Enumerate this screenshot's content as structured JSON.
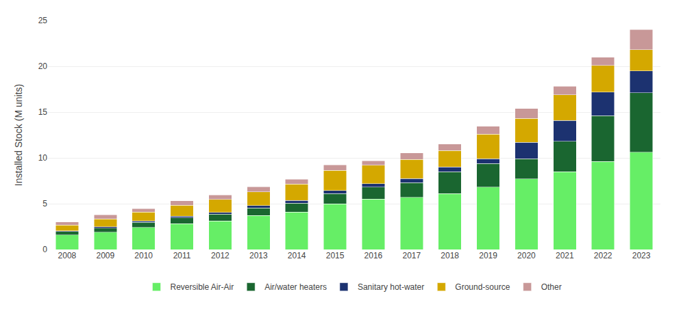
{
  "chart_data": {
    "type": "bar",
    "stacked": true,
    "categories": [
      "2008",
      "2009",
      "2010",
      "2011",
      "2012",
      "2013",
      "2014",
      "2015",
      "2016",
      "2017",
      "2018",
      "2019",
      "2020",
      "2021",
      "2022",
      "2023"
    ],
    "series": [
      {
        "name": "Reversible Air-Air",
        "color": "#66EE66",
        "values": [
          1.6,
          1.9,
          2.4,
          2.8,
          3.1,
          3.7,
          4.1,
          5.0,
          5.5,
          5.7,
          6.1,
          6.8,
          7.7,
          8.5,
          9.6,
          10.6
        ]
      },
      {
        "name": "Air/water heaters",
        "color": "#1A6630",
        "values": [
          0.35,
          0.45,
          0.55,
          0.65,
          0.75,
          0.85,
          0.95,
          1.1,
          1.3,
          1.6,
          2.4,
          2.6,
          2.2,
          3.3,
          5.0,
          6.5
        ]
      },
      {
        "name": "Sanitary hot-water",
        "color": "#1C3270",
        "values": [
          0.1,
          0.15,
          0.15,
          0.2,
          0.2,
          0.25,
          0.3,
          0.35,
          0.4,
          0.45,
          0.5,
          0.5,
          1.8,
          2.3,
          2.6,
          2.4
        ]
      },
      {
        "name": "Ground-source",
        "color": "#D4A800",
        "values": [
          0.6,
          0.85,
          1.0,
          1.2,
          1.4,
          1.5,
          1.8,
          2.2,
          2.0,
          2.1,
          1.8,
          2.7,
          2.6,
          2.8,
          2.9,
          2.3
        ]
      },
      {
        "name": "Other",
        "color": "#C89898",
        "values": [
          0.35,
          0.45,
          0.35,
          0.45,
          0.5,
          0.55,
          0.5,
          0.6,
          0.5,
          0.7,
          0.7,
          0.85,
          1.1,
          0.9,
          0.9,
          2.2
        ]
      }
    ],
    "ylabel": "Installed Stock (M units)",
    "ylim": [
      0,
      25
    ],
    "yticks": [
      0,
      5,
      10,
      15,
      20,
      25
    ],
    "grid": true,
    "legend": "bottom"
  }
}
